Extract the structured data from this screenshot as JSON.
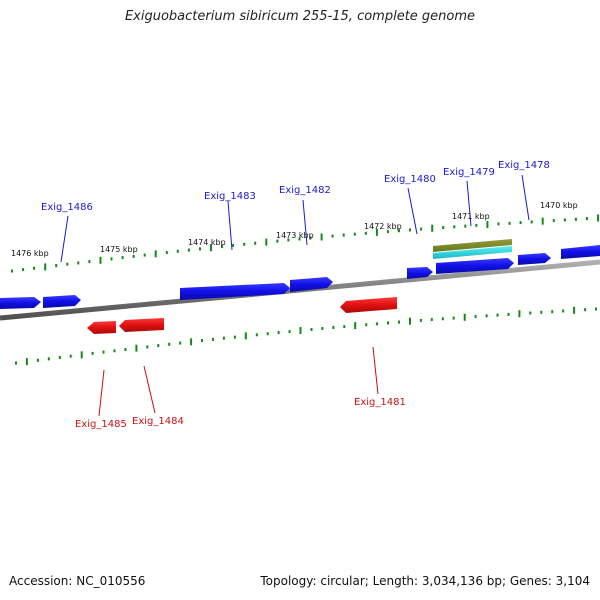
{
  "title": "Exiguobacterium sibiricum 255-15, complete genome",
  "footer": {
    "accession": "Accession: NC_010556",
    "summary": "Topology: circular; Length: 3,034,136 bp; Genes: 3,104"
  },
  "colors": {
    "forward_gene": "#1010e6",
    "reverse_gene": "#e01010",
    "forward_label": "#1a1ad0",
    "reverse_label": "#c81010",
    "tick": "#138a13",
    "backbone": "#808080",
    "rna_feature_top": "#8a8a2a",
    "rna_feature_bottom": "#22d6d6"
  },
  "scale_labels": [
    "1476 kbp",
    "1475 kbp",
    "1474 kbp",
    "1473 kbp",
    "1472 kbp",
    "1471 kbp",
    "1470 kbp"
  ],
  "forward_genes": [
    "Exig_1486",
    "Exig_1483",
    "Exig_1482",
    "Exig_1480",
    "Exig_1479",
    "Exig_1478"
  ],
  "reverse_genes": [
    "Exig_1485",
    "Exig_1484",
    "Exig_1481"
  ]
}
